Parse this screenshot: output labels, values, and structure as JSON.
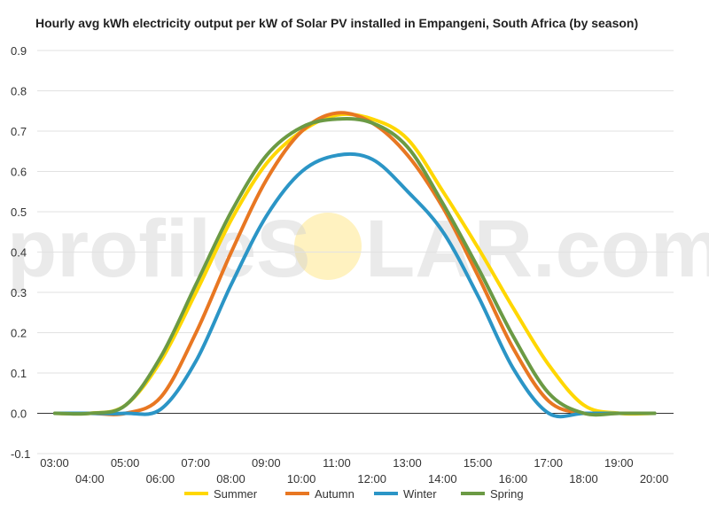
{
  "chart_data": {
    "type": "line",
    "title": "Hourly avg kWh electricity output per kW of Solar PV installed in Empangeni, South Africa (by season)",
    "xlabel": "",
    "ylabel": "",
    "ylim": [
      -0.1,
      0.9
    ],
    "yticks": [
      "-0.1",
      "0.0",
      "0.1",
      "0.2",
      "0.3",
      "0.4",
      "0.5",
      "0.6",
      "0.7",
      "0.8",
      "0.9"
    ],
    "categories": [
      "03:00",
      "04:00",
      "05:00",
      "06:00",
      "07:00",
      "08:00",
      "09:00",
      "10:00",
      "11:00",
      "12:00",
      "13:00",
      "14:00",
      "15:00",
      "16:00",
      "17:00",
      "18:00",
      "19:00",
      "20:00"
    ],
    "legend_position": "bottom",
    "grid": true,
    "series": [
      {
        "name": "Summer",
        "color": "#FFD700",
        "values": [
          0.0,
          0.0,
          0.02,
          0.13,
          0.3,
          0.48,
          0.62,
          0.7,
          0.74,
          0.73,
          0.68,
          0.55,
          0.41,
          0.26,
          0.12,
          0.02,
          0.0,
          0.0
        ]
      },
      {
        "name": "Autumn",
        "color": "#E87722",
        "values": [
          0.0,
          0.0,
          0.0,
          0.04,
          0.2,
          0.4,
          0.58,
          0.7,
          0.745,
          0.72,
          0.64,
          0.51,
          0.34,
          0.16,
          0.03,
          0.0,
          0.0,
          0.0
        ]
      },
      {
        "name": "Winter",
        "color": "#2B95C6",
        "values": [
          0.0,
          0.0,
          0.0,
          0.01,
          0.13,
          0.32,
          0.49,
          0.6,
          0.64,
          0.63,
          0.55,
          0.45,
          0.29,
          0.11,
          0.0,
          0.0,
          0.0,
          0.0
        ]
      },
      {
        "name": "Spring",
        "color": "#6B9A44",
        "values": [
          0.0,
          0.0,
          0.02,
          0.14,
          0.32,
          0.5,
          0.64,
          0.71,
          0.73,
          0.72,
          0.66,
          0.52,
          0.36,
          0.19,
          0.05,
          0.0,
          0.0,
          0.0
        ]
      }
    ]
  },
  "watermark": {
    "left_text": "profileS",
    "right_text": "LAR.com",
    "sun_color": "#FFEFB0"
  }
}
